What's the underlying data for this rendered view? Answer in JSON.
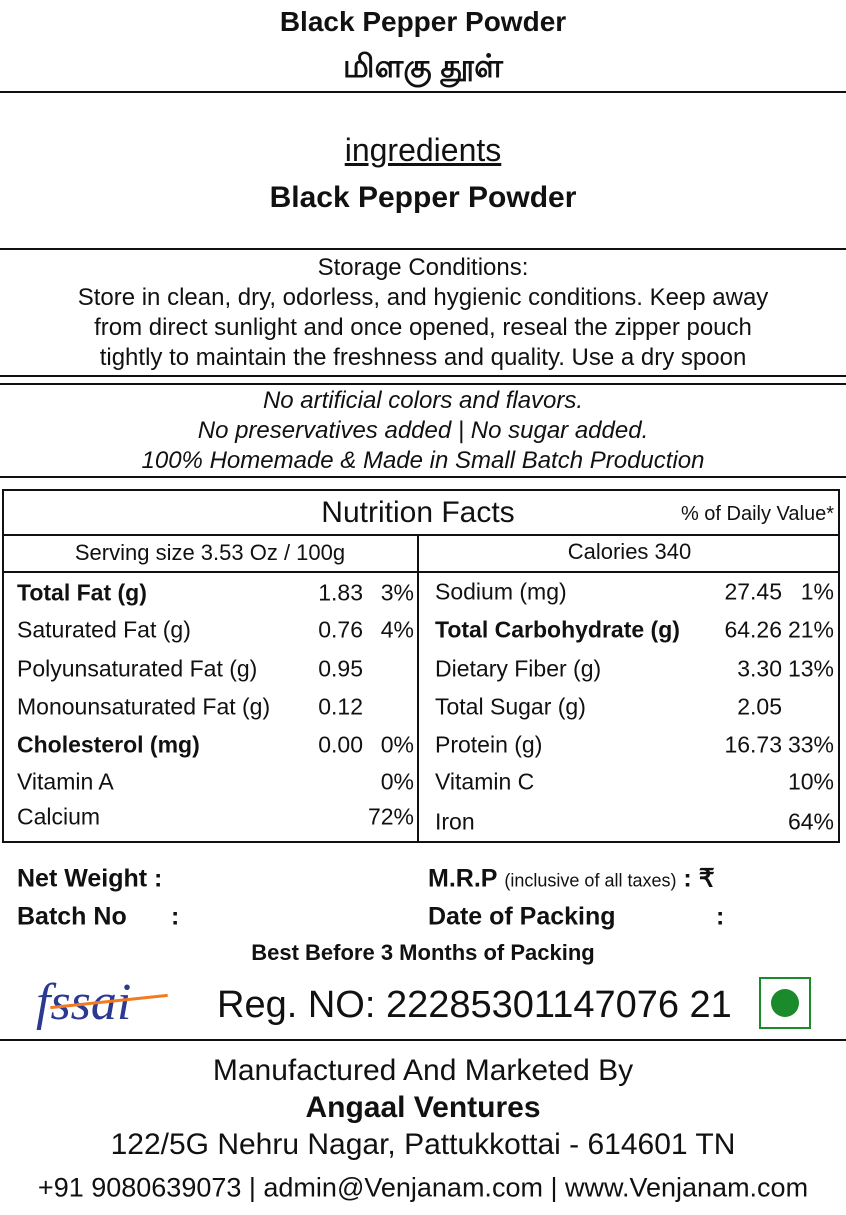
{
  "header": {
    "title": "Black Pepper Powder",
    "title_tamil": "மிளகு தூள்"
  },
  "ingredients": {
    "heading": "ingredients",
    "text": "Black Pepper Powder"
  },
  "storage": {
    "heading": "Storage Conditions:",
    "lines": [
      "Store in clean, dry, odorless, and hygienic conditions. Keep away",
      "from direct sunlight and once opened, reseal the zipper pouch",
      "tightly to maintain the freshness and quality. Use a dry spoon"
    ]
  },
  "claims": [
    "No artificial colors and flavors.",
    "No preservatives added | No sugar added.",
    "100% Homemade & Made in Small Batch Production"
  ],
  "nutrition": {
    "title": "Nutrition Facts",
    "dv_note": "% of Daily Value*",
    "serving": "Serving size 3.53 Oz / 100g",
    "calories": "Calories 340",
    "left": [
      {
        "name": "Total Fat (g)",
        "amount": "1.83",
        "dv": "3%",
        "bold": true
      },
      {
        "name": "Saturated Fat (g)",
        "amount": "0.76",
        "dv": "4%"
      },
      {
        "name": "Polyunsaturated Fat (g)",
        "amount": "0.95"
      },
      {
        "name": "Monounsaturated Fat (g)",
        "amount": "0.12"
      },
      {
        "name": "Cholesterol  (mg)",
        "amount": "0.00",
        "dv": "0%",
        "bold": true
      },
      {
        "name": "Vitamin A",
        "dv": "0%"
      },
      {
        "name": "Calcium",
        "dv": "72%"
      }
    ],
    "right": [
      {
        "name": "Sodium (mg)",
        "amount": "27.45",
        "dv": "1%"
      },
      {
        "name": "Total Carbohydrate (g)",
        "amount": "64.26",
        "dv": "21%",
        "bold": true
      },
      {
        "name": "Dietary Fiber (g)",
        "amount": "3.30",
        "dv": "13%"
      },
      {
        "name": "Total Sugar (g)",
        "amount": "2.05"
      },
      {
        "name": "Protein (g)",
        "amount": "16.73",
        "dv": "33%"
      },
      {
        "name": "Vitamin C",
        "dv": "10%"
      },
      {
        "name": "Iron",
        "dv": "64%"
      }
    ]
  },
  "footer": {
    "net_weight": "Net Weight :",
    "mrp": "M.R.P",
    "mrp_note": "(inclusive of all taxes)",
    "mrp_currency": " : ₹",
    "batch_no": "Batch No",
    "batch_colon": ":",
    "date_of_packing": "Date of Packing",
    "packing_colon": ":",
    "best_before": "Best Before 3 Months of Packing",
    "fssai_logo": "fssai",
    "reg_no": "Reg. NO: 22285301147076 21"
  },
  "manufacturer": {
    "heading": "Manufactured And Marketed By",
    "name": "Angaal Ventures",
    "address": "122/5G Nehru Nagar, Pattukkottai - 614601 TN",
    "contact": "+91 9080639073 | admin@Venjanam.com | www.Venjanam.com"
  }
}
